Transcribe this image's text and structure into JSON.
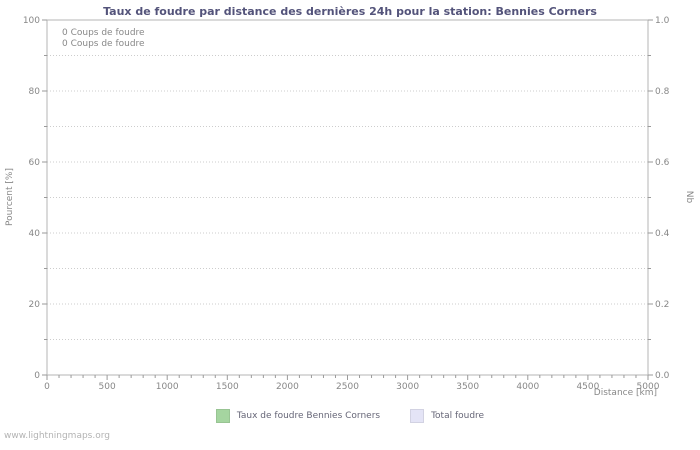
{
  "title": "Taux de foudre par distance des dernières 24h pour la station: Bennies Corners",
  "watermark": "www.lightningmaps.org",
  "annotations": [
    "0  Coups de foudre",
    "0  Coups de foudre"
  ],
  "legend": [
    {
      "label": "Taux de foudre Bennies Corners",
      "color": "#a5d5a0"
    },
    {
      "label": "Total foudre",
      "color": "#e4e4f6"
    }
  ],
  "chart_data": {
    "type": "line",
    "title": "Taux de foudre par distance des dernières 24h pour la station: Bennies Corners",
    "xlabel": "Distance  [km]",
    "ylabel_left": "Pourcent  [%]",
    "ylabel_right": "Nb",
    "xlim": [
      0,
      5000
    ],
    "x_ticks": [
      0,
      500,
      1000,
      1500,
      2000,
      2500,
      3000,
      3500,
      4000,
      4500,
      5000
    ],
    "x_minor_step": 100,
    "ylim_left": [
      0,
      100
    ],
    "y_left_ticks": [
      0,
      20,
      40,
      60,
      80,
      100
    ],
    "y_left_minor_step": 10,
    "ylim_right": [
      0,
      1
    ],
    "y_right_tick_labels": [
      "0.0",
      "0.2",
      "0.4",
      "0.6",
      "0.8",
      "1.0"
    ],
    "grid": true,
    "grid_orientation": "horizontal-dotted",
    "legend_position": "bottom",
    "series": [
      {
        "name": "Taux de foudre Bennies Corners",
        "values": []
      },
      {
        "name": "Total foudre",
        "values": []
      }
    ]
  }
}
